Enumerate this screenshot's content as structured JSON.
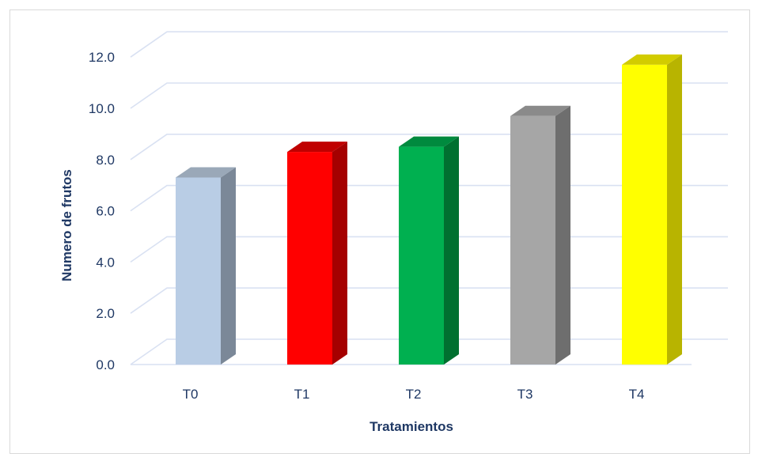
{
  "chart_data": {
    "type": "bar",
    "title": "",
    "xlabel": "Tratamientos",
    "ylabel": "Numero de frutos",
    "categories": [
      "T0",
      "T1",
      "T2",
      "T3",
      "T4"
    ],
    "values": [
      7.3,
      8.3,
      8.5,
      9.7,
      11.7
    ],
    "ylim": [
      0,
      12
    ],
    "yticks": [
      "0.0",
      "2.0",
      "4.0",
      "6.0",
      "8.0",
      "10.0",
      "12.0"
    ],
    "grid": true,
    "legend": "none",
    "bar_colors": [
      {
        "front": "#b9cde5",
        "side": "#7b8898",
        "top": "#9aa8b8"
      },
      {
        "front": "#ff0000",
        "side": "#a50000",
        "top": "#c00000"
      },
      {
        "front": "#00b050",
        "side": "#007030",
        "top": "#008a3e"
      },
      {
        "front": "#a6a6a6",
        "side": "#6e6e6e",
        "top": "#8a8a8a"
      },
      {
        "front": "#ffff00",
        "side": "#b8b400",
        "top": "#d2cc00"
      }
    ]
  }
}
